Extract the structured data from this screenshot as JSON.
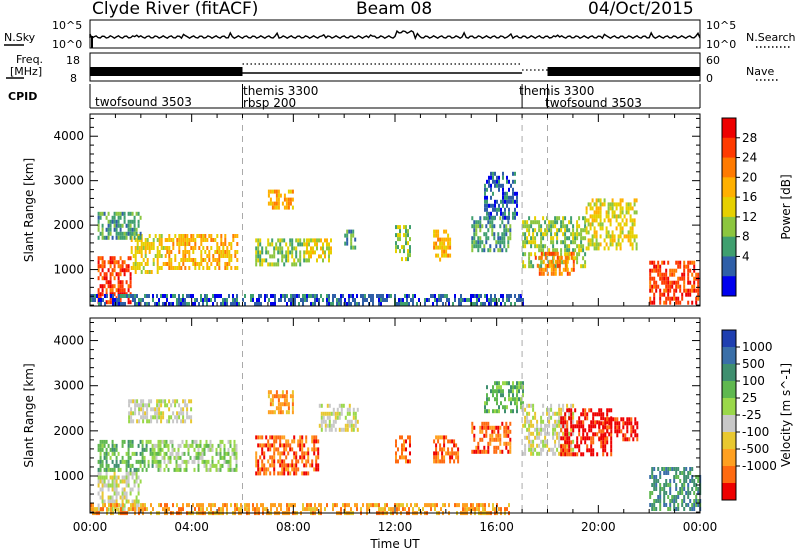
{
  "header": {
    "station": "Clyde River (fitACF)",
    "beam": "Beam 08",
    "date": "04/Oct/2015"
  },
  "top_panels": {
    "nsky_label": "N.Sky",
    "nsearch_label": "N.Search",
    "nsky_ticks": [
      "10^5",
      "10^0"
    ],
    "nsearch_ticks": [
      "10^5",
      "10^0"
    ],
    "freq_label": "Freq.",
    "freq_unit": "[MHz]",
    "freq_ticks": [
      "18",
      "8"
    ],
    "nave_label": "Nave",
    "nave_ticks": [
      "60",
      "0"
    ],
    "cpid_label": "CPID"
  },
  "cpid_segments": [
    {
      "start_h": 0,
      "end_h": 6,
      "labels": [
        "twofsound 3503"
      ]
    },
    {
      "start_h": 6,
      "end_h": 17,
      "labels": [
        "themis 3300",
        "rbsp 200"
      ]
    },
    {
      "start_h": 17,
      "end_h": 18,
      "labels": [
        "themis 3300"
      ]
    },
    {
      "start_h": 18,
      "end_h": 24,
      "labels": [
        "twofsound 3503"
      ]
    }
  ],
  "power_colorbar": {
    "title": "Power [dB]",
    "ticks": [
      "28",
      "24",
      "20",
      "16",
      "12",
      "8",
      "4"
    ],
    "colors": [
      "#ee0000",
      "#ff3a00",
      "#ff7a00",
      "#ffb000",
      "#e6d000",
      "#8cc63f",
      "#3f9f6f",
      "#2f5fa8",
      "#0000ee"
    ]
  },
  "velocity_colorbar": {
    "title": "Velocity [m s^-1]",
    "ticks": [
      "1000",
      "500",
      "100",
      "25",
      "-25",
      "-100",
      "-500",
      "-1000"
    ],
    "colors": [
      "#1f3fb0",
      "#3a6fa8",
      "#3f8f6f",
      "#5fb84f",
      "#9ad84a",
      "#c8c8c8",
      "#e8c830",
      "#ffa020",
      "#ff6a10",
      "#ee0000"
    ]
  },
  "chart_data": [
    {
      "type": "heatmap",
      "name": "power",
      "xlabel": "",
      "ylabel": "Slant Range [km]",
      "xlim": [
        0,
        24
      ],
      "ylim": [
        180,
        4500
      ],
      "yticks": [
        1000,
        2000,
        3000,
        4000
      ],
      "xticks": [
        "00:00",
        "04:00",
        "08:00",
        "12:00",
        "16:00",
        "20:00",
        "00:00"
      ],
      "mode_change_lines_h": [
        6,
        17,
        18
      ],
      "regions": [
        {
          "t0": 0.3,
          "t1": 1.6,
          "r0": 300,
          "r1": 1300,
          "level": 1
        },
        {
          "t0": 1.6,
          "t1": 3.0,
          "r0": 900,
          "r1": 1800,
          "level": 4
        },
        {
          "t0": 3.0,
          "t1": 5.8,
          "r0": 1000,
          "r1": 1800,
          "level": 3
        },
        {
          "t0": 0.3,
          "t1": 2.0,
          "r0": 1700,
          "r1": 2300,
          "level": 6
        },
        {
          "t0": 6.5,
          "t1": 8.5,
          "r0": 1100,
          "r1": 1700,
          "level": 5
        },
        {
          "t0": 7.0,
          "t1": 8.0,
          "r0": 2400,
          "r1": 2800,
          "level": 3
        },
        {
          "t0": 8.5,
          "t1": 9.5,
          "r0": 1200,
          "r1": 1700,
          "level": 4
        },
        {
          "t0": 10.0,
          "t1": 10.4,
          "r0": 1500,
          "r1": 1900,
          "level": 6
        },
        {
          "t0": 12.0,
          "t1": 12.6,
          "r0": 1200,
          "r1": 2000,
          "level": 5
        },
        {
          "t0": 13.5,
          "t1": 14.2,
          "r0": 1200,
          "r1": 1900,
          "level": 3
        },
        {
          "t0": 15.5,
          "t1": 16.8,
          "r0": 2200,
          "r1": 3200,
          "level": 7
        },
        {
          "t0": 15.0,
          "t1": 16.5,
          "r0": 1400,
          "r1": 2200,
          "level": 6
        },
        {
          "t0": 17.0,
          "t1": 19.5,
          "r0": 1100,
          "r1": 2200,
          "level": 5
        },
        {
          "t0": 17.5,
          "t1": 19.0,
          "r0": 900,
          "r1": 1400,
          "level": 2
        },
        {
          "t0": 19.5,
          "t1": 21.5,
          "r0": 1500,
          "r1": 2600,
          "level": 4
        },
        {
          "t0": 22.0,
          "t1": 23.9,
          "r0": 250,
          "r1": 1200,
          "level": 1
        },
        {
          "t0": 0.0,
          "t1": 17.0,
          "r0": 200,
          "r1": 450,
          "level": 7
        }
      ]
    },
    {
      "type": "heatmap",
      "name": "velocity",
      "xlabel": "Time UT",
      "ylabel": "Slant Range [km]",
      "xlim": [
        0,
        24
      ],
      "ylim": [
        180,
        4500
      ],
      "yticks": [
        1000,
        2000,
        3000,
        4000
      ],
      "xticks": [
        "00:00",
        "04:00",
        "08:00",
        "12:00",
        "16:00",
        "20:00",
        "00:00"
      ],
      "mode_change_lines_h": [
        6,
        17,
        18
      ],
      "regions": [
        {
          "t0": 0.3,
          "t1": 2.0,
          "r0": 300,
          "r1": 1100,
          "level": 5
        },
        {
          "t0": 0.3,
          "t1": 2.5,
          "r0": 1100,
          "r1": 1800,
          "level": 3
        },
        {
          "t0": 2.5,
          "t1": 5.8,
          "r0": 1100,
          "r1": 1800,
          "level": 4
        },
        {
          "t0": 1.5,
          "t1": 4.0,
          "r0": 2200,
          "r1": 2700,
          "level": 5
        },
        {
          "t0": 6.5,
          "t1": 9.0,
          "r0": 1100,
          "r1": 1900,
          "level": 8
        },
        {
          "t0": 7.0,
          "t1": 8.0,
          "r0": 2400,
          "r1": 2900,
          "level": 7
        },
        {
          "t0": 9.0,
          "t1": 10.5,
          "r0": 2000,
          "r1": 2600,
          "level": 5
        },
        {
          "t0": 12.0,
          "t1": 12.6,
          "r0": 1300,
          "r1": 1900,
          "level": 8
        },
        {
          "t0": 13.5,
          "t1": 14.5,
          "r0": 1300,
          "r1": 1900,
          "level": 8
        },
        {
          "t0": 15.0,
          "t1": 16.5,
          "r0": 1500,
          "r1": 2200,
          "level": 8
        },
        {
          "t0": 15.5,
          "t1": 17.0,
          "r0": 2400,
          "r1": 3100,
          "level": 3
        },
        {
          "t0": 17.0,
          "t1": 19.0,
          "r0": 1500,
          "r1": 2600,
          "level": 5
        },
        {
          "t0": 18.5,
          "t1": 20.5,
          "r0": 1500,
          "r1": 2500,
          "level": 9
        },
        {
          "t0": 20.0,
          "t1": 21.5,
          "r0": 1800,
          "r1": 2300,
          "level": 9
        },
        {
          "t0": 22.0,
          "t1": 24.0,
          "r0": 250,
          "r1": 1200,
          "level": 2
        },
        {
          "t0": 0.0,
          "t1": 16.5,
          "r0": 200,
          "r1": 400,
          "level": 7
        }
      ]
    }
  ]
}
